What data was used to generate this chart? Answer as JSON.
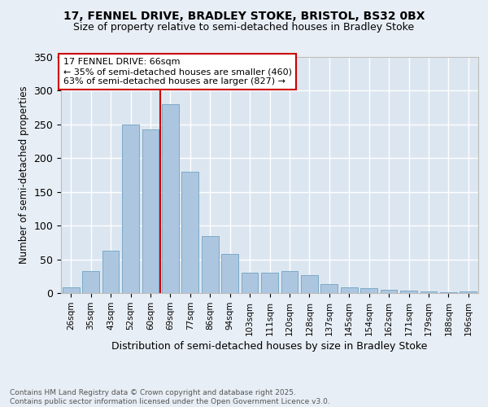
{
  "title1": "17, FENNEL DRIVE, BRADLEY STOKE, BRISTOL, BS32 0BX",
  "title2": "Size of property relative to semi-detached houses in Bradley Stoke",
  "xlabel": "Distribution of semi-detached houses by size in Bradley Stoke",
  "ylabel": "Number of semi-detached properties",
  "categories": [
    "26sqm",
    "35sqm",
    "43sqm",
    "52sqm",
    "60sqm",
    "69sqm",
    "77sqm",
    "86sqm",
    "94sqm",
    "103sqm",
    "111sqm",
    "120sqm",
    "128sqm",
    "137sqm",
    "145sqm",
    "154sqm",
    "162sqm",
    "171sqm",
    "179sqm",
    "188sqm",
    "196sqm"
  ],
  "values": [
    8,
    33,
    63,
    250,
    243,
    280,
    180,
    85,
    58,
    30,
    30,
    33,
    27,
    13,
    8,
    7,
    5,
    4,
    2,
    1,
    2
  ],
  "bar_color": "#adc6e0",
  "bar_edge_color": "#7aaac8",
  "vline_color": "#cc0000",
  "annotation_title": "17 FENNEL DRIVE: 66sqm",
  "annotation_line1": "← 35% of semi-detached houses are smaller (460)",
  "annotation_line2": "63% of semi-detached houses are larger (827) →",
  "annotation_box_color": "#ffffff",
  "annotation_box_edge": "#cc0000",
  "ylim": [
    0,
    350
  ],
  "yticks": [
    0,
    50,
    100,
    150,
    200,
    250,
    300,
    350
  ],
  "background_color": "#e8eef5",
  "plot_bg_color": "#dce6f0",
  "grid_color": "#ffffff",
  "footer": "Contains HM Land Registry data © Crown copyright and database right 2025.\nContains public sector information licensed under the Open Government Licence v3.0."
}
